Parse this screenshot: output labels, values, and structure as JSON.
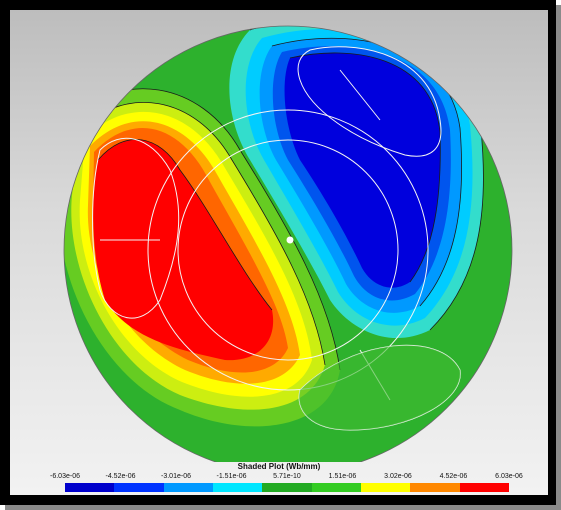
{
  "legend": {
    "title": "Shaded Plot (Wb/mm)",
    "ticks": [
      "-6.03e-06",
      "-4.52e-06",
      "-3.01e-06",
      "-1.51e-06",
      "5.71e-10",
      "1.51e-06",
      "3.02e-06",
      "4.52e-06",
      "6.03e-06"
    ],
    "colors": [
      "#0000cc",
      "#0033ff",
      "#0099ff",
      "#00e6ff",
      "#22aa22",
      "#33cc22",
      "#ffff00",
      "#ff8800",
      "#ff0000"
    ]
  },
  "plot": {
    "background": "gradient-grey",
    "disc_color": "#2db12d",
    "negative_region_color": "#0000dd",
    "positive_region_color": "#ff0000"
  }
}
